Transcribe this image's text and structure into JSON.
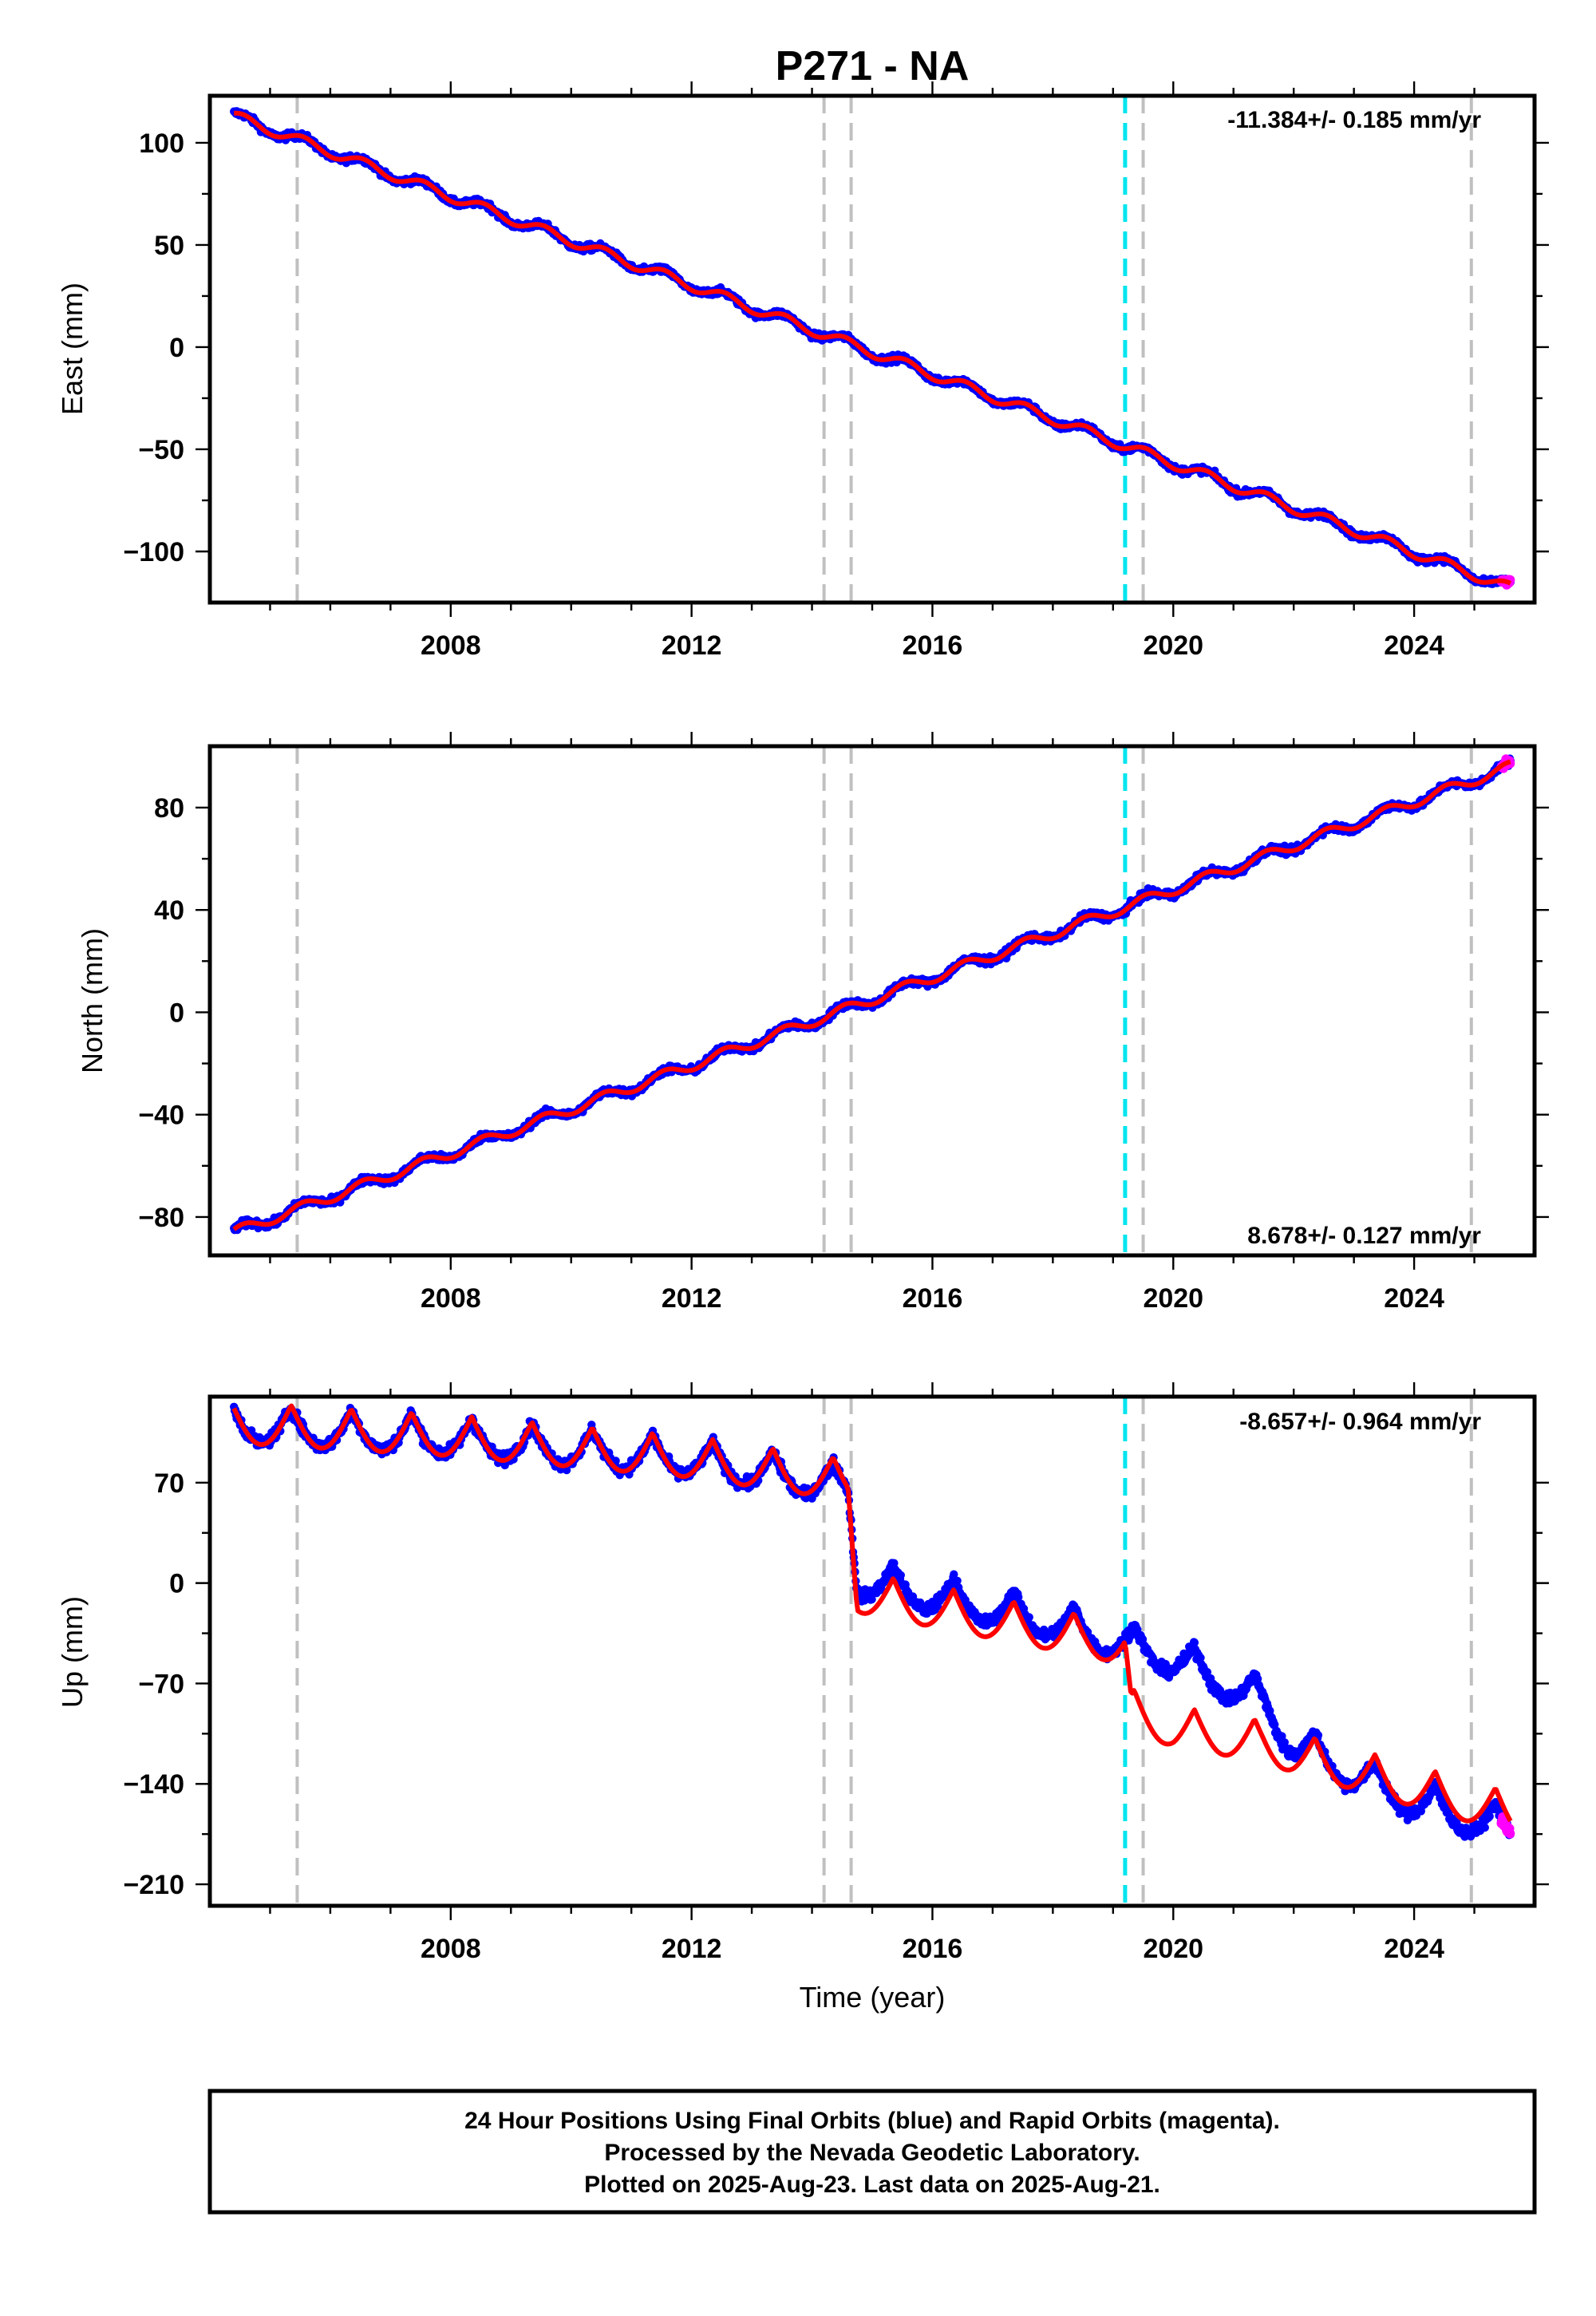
{
  "title": "P271 - NA",
  "colors": {
    "final_orbits": "#0000ff",
    "rapid_orbits": "#ff00ff",
    "model_fit": "#ff0000",
    "equipment_change": "#c0c0c0",
    "earthquake": "#00e5ee"
  },
  "footer": {
    "line1": "24 Hour Positions Using Final Orbits (blue) and Rapid Orbits (magenta).",
    "line2": "Processed by the Nevada Geodetic Laboratory.",
    "line3": "Plotted on 2025-Aug-23. Last data on 2025-Aug-21."
  },
  "chart_data": [
    {
      "type": "scatter",
      "component": "east",
      "ylabel": "East (mm)",
      "xlabel": "",
      "xlim": [
        2004.0,
        2026.0
      ],
      "ylim": [
        -125,
        123
      ],
      "x_ticks": [
        2008,
        2012,
        2016,
        2020,
        2024
      ],
      "y_ticks": [
        100,
        50,
        0,
        -50,
        -100
      ],
      "y_tick_labels": [
        "100",
        "50",
        "0",
        "−50",
        "−100"
      ],
      "rate_label": "-11.384+/- 0.185 mm/yr",
      "rate_label_position": "top-right",
      "start": [
        2004.4,
        113
      ],
      "end": [
        2025.6,
        -118
      ],
      "velocity_mm_per_yr": -11.384,
      "seasonal_amplitude_mm": 2.5,
      "scatter_mm": 1.6,
      "vlines_grey": [
        2005.45,
        2014.2,
        2014.65,
        2019.5,
        2024.95
      ],
      "vlines_cyan": [
        2019.2
      ]
    },
    {
      "type": "scatter",
      "component": "north",
      "ylabel": "North (mm)",
      "xlabel": "",
      "xlim": [
        2004.0,
        2026.0
      ],
      "ylim": [
        -95,
        104
      ],
      "x_ticks": [
        2008,
        2012,
        2016,
        2020,
        2024
      ],
      "y_ticks": [
        80,
        40,
        0,
        -40,
        -80
      ],
      "y_tick_labels": [
        "80",
        "40",
        "0",
        "−40",
        "−80"
      ],
      "rate_label": "8.678+/- 0.127 mm/yr",
      "rate_label_position": "bottom-right",
      "start": [
        2004.4,
        -86
      ],
      "end": [
        2025.6,
        96
      ],
      "velocity_mm_per_yr": 8.678,
      "seasonal_amplitude_mm": 2.0,
      "scatter_mm": 1.4,
      "vlines_grey": [
        2005.45,
        2014.2,
        2014.65,
        2019.5,
        2024.95
      ],
      "vlines_cyan": [
        2019.2
      ]
    },
    {
      "type": "scatter",
      "component": "up",
      "ylabel": "Up (mm)",
      "xlabel": "Time (year)",
      "xlim": [
        2004.0,
        2026.0
      ],
      "ylim": [
        -225,
        130
      ],
      "x_ticks": [
        2008,
        2012,
        2016,
        2020,
        2024
      ],
      "y_ticks": [
        70,
        0,
        -70,
        -140,
        -210
      ],
      "y_tick_labels": [
        "70",
        "0",
        "−70",
        "−140",
        "−210"
      ],
      "rate_label": "-8.657+/- 0.964 mm/yr",
      "rate_label_position": "top-right",
      "observed_trend_knots": [
        [
          2004.4,
          112
        ],
        [
          2008.0,
          103
        ],
        [
          2012.0,
          88
        ],
        [
          2014.6,
          70
        ],
        [
          2014.75,
          5
        ],
        [
          2018.0,
          -25
        ],
        [
          2019.2,
          -40
        ],
        [
          2020.0,
          -50
        ],
        [
          2021.5,
          -80
        ],
        [
          2022.0,
          -110
        ],
        [
          2024.0,
          -150
        ],
        [
          2025.6,
          -170
        ]
      ],
      "model_trend_knots": [
        [
          2004.4,
          112
        ],
        [
          2008.0,
          103
        ],
        [
          2012.0,
          88
        ],
        [
          2014.6,
          72
        ],
        [
          2014.75,
          -6
        ],
        [
          2019.2,
          -42
        ],
        [
          2019.3,
          -88
        ],
        [
          2020.0,
          -100
        ],
        [
          2021.5,
          -110
        ],
        [
          2022.0,
          -118
        ],
        [
          2025.6,
          -160
        ]
      ],
      "seasonal_amplitude_mm": 13,
      "scatter_mm": 4,
      "vlines_grey": [
        2005.45,
        2014.2,
        2014.65,
        2019.5,
        2024.95
      ],
      "vlines_cyan": [
        2019.2
      ]
    }
  ]
}
